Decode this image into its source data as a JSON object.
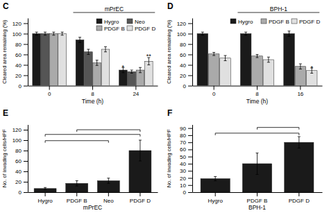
{
  "chart_data": [
    {
      "type": "bar",
      "title": "mPrEC",
      "xlabel": "Time (h)",
      "ylabel": "Cleared area remaining (%)",
      "categories": [
        0,
        8,
        24
      ],
      "series": [
        {
          "name": "Hygro",
          "color": "#1a1a1a",
          "values": [
            100,
            88,
            30
          ],
          "errors": [
            3,
            5,
            5
          ]
        },
        {
          "name": "Neo",
          "color": "#555555",
          "values": [
            100,
            65,
            27
          ],
          "errors": [
            3,
            5,
            3
          ]
        },
        {
          "name": "PDGF B",
          "color": "#aaaaaa",
          "values": [
            100,
            44,
            30
          ],
          "errors": [
            3,
            5,
            5
          ]
        },
        {
          "name": "PDGF D",
          "color": "#e0e0e0",
          "values": [
            100,
            70,
            47
          ],
          "errors": [
            3,
            5,
            7
          ]
        }
      ],
      "ylim": [
        0,
        130
      ],
      "yticks": [
        0,
        20,
        40,
        60,
        80,
        100,
        120
      ],
      "legend": "upper right",
      "grid": false,
      "annotations": [
        {
          "text": "C"
        },
        {
          "text": "*",
          "category": 2,
          "series": 0,
          "y": 36
        },
        {
          "text": "**",
          "category": 2,
          "series": 3,
          "y": 57
        }
      ]
    },
    {
      "type": "bar",
      "title": "BPH-1",
      "xlabel": "Time (h)",
      "ylabel": "Cleared area remaining (%)",
      "categories": [
        0,
        8,
        16
      ],
      "series": [
        {
          "name": "Hygro",
          "color": "#1a1a1a",
          "values": [
            100,
            100,
            100
          ],
          "errors": [
            3,
            3,
            5
          ]
        },
        {
          "name": "PDGF B",
          "color": "#aaaaaa",
          "values": [
            61,
            57,
            37
          ],
          "errors": [
            3,
            3,
            5
          ]
        },
        {
          "name": "PDGF D",
          "color": "#e0e0e0",
          "values": [
            53,
            50,
            29
          ],
          "errors": [
            5,
            5,
            5
          ]
        }
      ],
      "ylim": [
        0,
        130
      ],
      "yticks": [
        0,
        20,
        40,
        60,
        80,
        100,
        120
      ],
      "legend": "upper right",
      "grid": false,
      "annotations": [
        {
          "text": "D"
        },
        {
          "text": "*",
          "category": 2,
          "series": 2,
          "y": 34
        }
      ]
    },
    {
      "type": "bar",
      "xlabel": "mPrEC",
      "ylabel": "No. of invading cells/HPF",
      "categories": [
        "Hygro",
        "PDGF B",
        "Neo",
        "PDGF D"
      ],
      "values": [
        7,
        17,
        22,
        80
      ],
      "errors": [
        2,
        5,
        5,
        20
      ],
      "colors": [
        "#1a1a1a",
        "#1a1a1a",
        "#1a1a1a",
        "#1a1a1a"
      ],
      "ylim": [
        0,
        130
      ],
      "yticks": [
        0,
        20,
        40,
        60,
        80,
        100,
        120
      ],
      "grid": false,
      "brackets": [
        {
          "from": 0,
          "to": 2,
          "y": 95
        },
        {
          "from": 0,
          "to": 3,
          "y": 107
        },
        {
          "from": 1,
          "to": 3,
          "y": 116
        }
      ],
      "annotations": [
        {
          "text": "E"
        }
      ]
    },
    {
      "type": "bar",
      "xlabel": "BPH-1",
      "ylabel": "No. of invading cells/HPF",
      "categories": [
        "Hygro",
        "PDGF B",
        "PDGF D"
      ],
      "values": [
        19,
        40,
        70
      ],
      "errors": [
        3,
        15,
        8
      ],
      "colors": [
        "#1a1a1a",
        "#1a1a1a",
        "#1a1a1a"
      ],
      "ylim": [
        0,
        95
      ],
      "yticks": [
        0,
        10,
        20,
        30,
        40,
        50,
        60,
        70,
        80,
        90
      ],
      "grid": false,
      "brackets": [
        {
          "from": 0,
          "to": 2,
          "y": 80
        },
        {
          "from": 1,
          "to": 2,
          "y": 88
        }
      ],
      "annotations": [
        {
          "text": "F"
        }
      ]
    }
  ]
}
